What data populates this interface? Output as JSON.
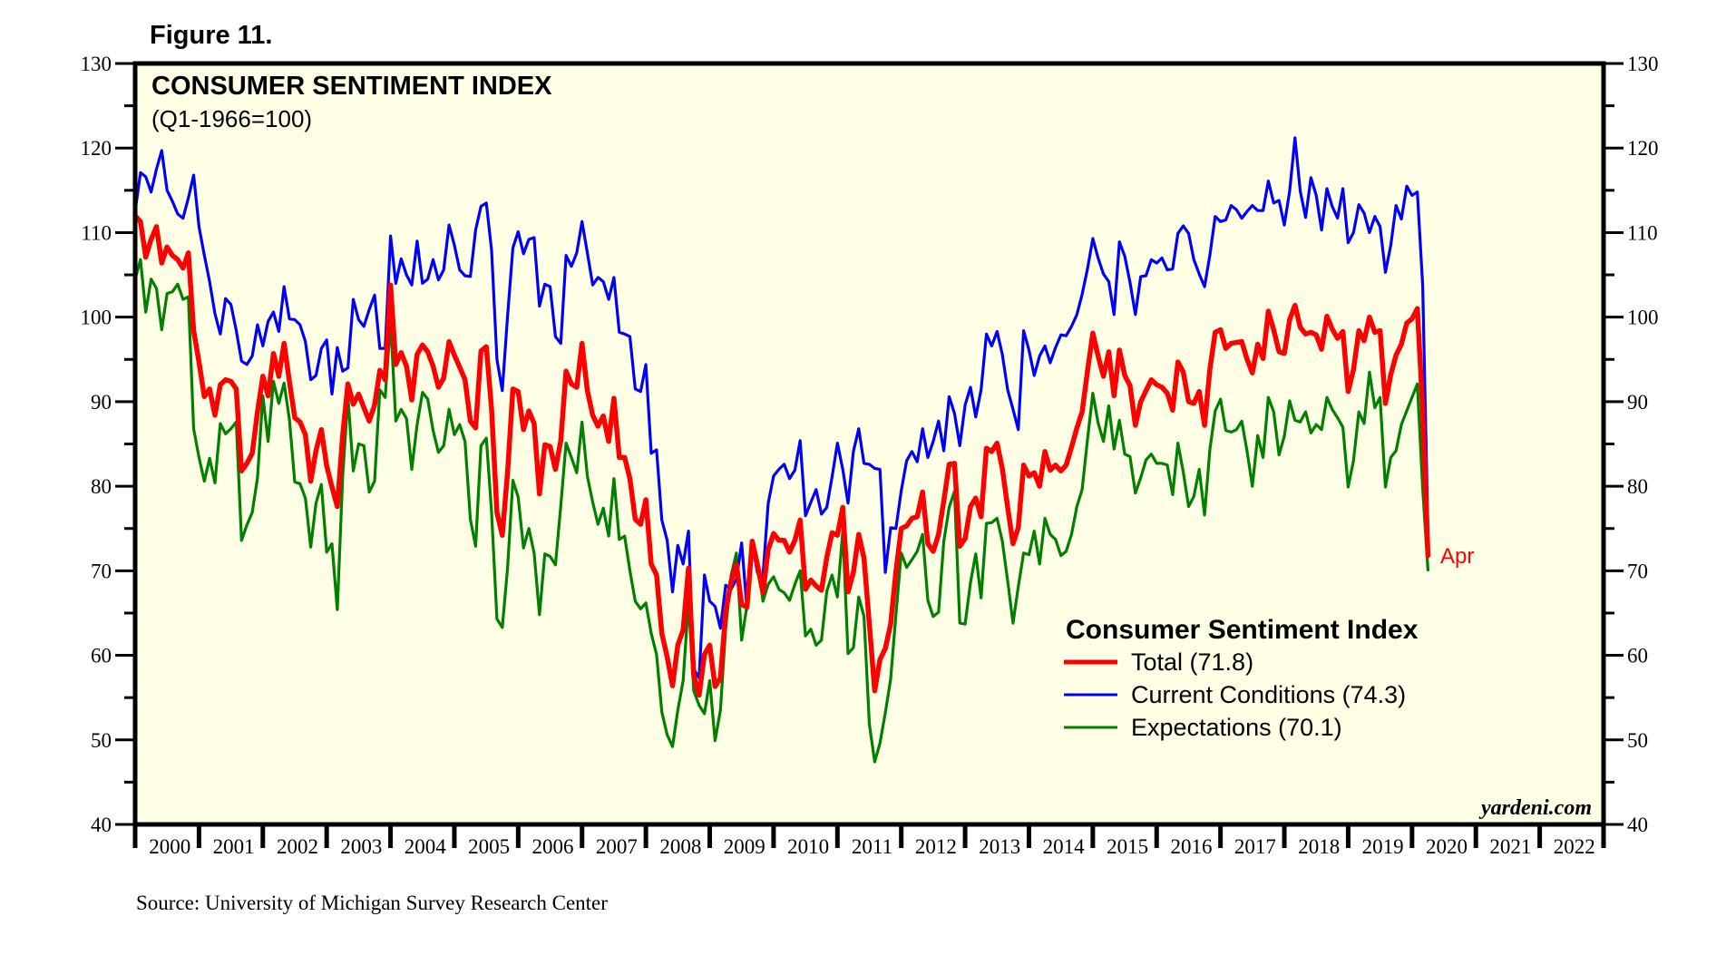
{
  "figure_label": "Figure 11.",
  "source": "Source: University of Michigan Survey Research Center",
  "watermark": "yardeni.com",
  "end_label": "Apr",
  "colors": {
    "plot_background": "#FFFFE5",
    "total": "#FF0000",
    "current": "#0000FF",
    "expectations": "#008000"
  },
  "chart_data": {
    "type": "line",
    "title": "CONSUMER SENTIMENT INDEX",
    "subtitle": "(Q1-1966=100)",
    "xlabel": "",
    "ylabel": "",
    "ylim": [
      40,
      130
    ],
    "yticks": [
      40,
      50,
      60,
      70,
      80,
      90,
      100,
      110,
      120,
      130
    ],
    "xlim": [
      2000,
      2023
    ],
    "xtick_labels": [
      "2000",
      "2001",
      "2002",
      "2003",
      "2004",
      "2005",
      "2006",
      "2007",
      "2008",
      "2009",
      "2010",
      "2011",
      "2012",
      "2013",
      "2014",
      "2015",
      "2016",
      "2017",
      "2018",
      "2019",
      "2020",
      "2021",
      "2022"
    ],
    "x_start": "2000-01",
    "frequency": "monthly",
    "grid": false,
    "legend": {
      "title": "Consumer Sentiment Index",
      "placement": "bottom-right",
      "entries": [
        {
          "key": "total",
          "label": "Total (71.8)"
        },
        {
          "key": "current",
          "label": "Current Conditions (74.3)"
        },
        {
          "key": "expectations",
          "label": "Expectations (70.1)"
        }
      ]
    },
    "annotations": [
      {
        "text": "Apr",
        "series": "total",
        "x": "2020-04"
      }
    ],
    "series": [
      {
        "key": "total",
        "name": "Total",
        "values": [
          112.0,
          111.3,
          107.1,
          109.2,
          110.7,
          106.4,
          108.3,
          107.3,
          106.8,
          105.8,
          107.6,
          98.4,
          94.7,
          90.6,
          91.5,
          88.4,
          92.0,
          92.6,
          92.4,
          91.5,
          81.8,
          82.7,
          83.9,
          88.8,
          93.0,
          90.7,
          95.7,
          93.0,
          96.9,
          92.4,
          88.1,
          87.6,
          86.1,
          80.6,
          84.2,
          86.7,
          82.4,
          79.9,
          77.6,
          86.0,
          92.1,
          89.7,
          90.9,
          89.3,
          87.7,
          89.6,
          93.7,
          92.6,
          103.8,
          94.4,
          95.8,
          94.2,
          90.2,
          95.6,
          96.7,
          95.9,
          94.2,
          91.7,
          92.8,
          97.1,
          95.5,
          94.1,
          92.6,
          87.7,
          86.9,
          96.0,
          96.5,
          89.1,
          76.9,
          74.2,
          81.6,
          91.5,
          91.2,
          86.7,
          88.9,
          87.4,
          79.1,
          84.9,
          84.7,
          82.0,
          85.4,
          93.6,
          92.1,
          91.7,
          96.9,
          91.3,
          88.4,
          87.1,
          88.3,
          85.3,
          90.4,
          83.4,
          83.4,
          80.9,
          76.1,
          75.5,
          78.4,
          70.8,
          69.5,
          62.6,
          59.8,
          56.4,
          61.2,
          63.0,
          70.3,
          57.6,
          55.3,
          60.1,
          61.2,
          56.3,
          57.3,
          65.1,
          68.7,
          70.8,
          66.0,
          65.7,
          73.5,
          70.6,
          67.4,
          72.5,
          74.4,
          73.6,
          73.6,
          72.2,
          73.6,
          76.0,
          67.8,
          68.9,
          68.2,
          67.7,
          71.6,
          74.5,
          74.2,
          77.5,
          67.5,
          69.8,
          74.3,
          71.5,
          63.7,
          55.8,
          59.5,
          60.8,
          63.7,
          69.9,
          75.0,
          75.3,
          76.2,
          76.4,
          79.3,
          73.2,
          72.3,
          74.3,
          78.3,
          82.6,
          82.7,
          72.9,
          73.8,
          77.6,
          78.6,
          76.4,
          84.5,
          84.1,
          85.1,
          82.1,
          77.5,
          73.2,
          75.1,
          82.5,
          81.2,
          81.6,
          80.0,
          84.1,
          81.9,
          82.5,
          81.8,
          82.5,
          84.6,
          86.9,
          88.8,
          93.6,
          98.1,
          95.4,
          93.0,
          95.9,
          90.7,
          96.1,
          93.1,
          91.9,
          87.2,
          90.0,
          91.3,
          92.6,
          92.0,
          91.7,
          91.0,
          89.0,
          94.7,
          93.5,
          90.0,
          89.8,
          91.2,
          87.2,
          93.8,
          98.2,
          98.5,
          96.3,
          96.9,
          97.0,
          97.1,
          95.0,
          93.4,
          96.8,
          95.1,
          100.7,
          98.5,
          95.9,
          95.7,
          99.7,
          101.4,
          98.8,
          98.0,
          98.2,
          97.9,
          96.2,
          100.1,
          98.6,
          97.5,
          98.3,
          91.2,
          93.8,
          98.4,
          97.2,
          100.0,
          98.2,
          98.4,
          89.8,
          93.2,
          95.5,
          96.8,
          99.3,
          99.8,
          101.0,
          89.1,
          71.8
        ]
      },
      {
        "key": "current",
        "name": "Current Conditions",
        "values": [
          112.5,
          117.1,
          116.6,
          114.8,
          117.5,
          119.7,
          115.0,
          113.7,
          112.2,
          111.7,
          114.1,
          116.8,
          110.7,
          107.3,
          104.2,
          100.4,
          98.0,
          102.2,
          101.5,
          98.4,
          94.8,
          94.4,
          95.4,
          99.1,
          96.6,
          99.5,
          100.6,
          98.3,
          103.6,
          99.8,
          99.7,
          99.1,
          97.1,
          92.6,
          93.1,
          96.3,
          97.3,
          90.9,
          96.4,
          93.6,
          94.0,
          102.1,
          99.7,
          98.9,
          100.9,
          102.6,
          96.3,
          96.3,
          109.6,
          104.0,
          106.9,
          105.0,
          103.8,
          109.0,
          104.0,
          104.5,
          106.8,
          104.4,
          105.6,
          110.9,
          108.5,
          105.6,
          104.9,
          104.8,
          110.3,
          113.1,
          113.5,
          107.9,
          95.0,
          91.3,
          100.1,
          108.2,
          110.1,
          107.5,
          109.2,
          109.4,
          101.3,
          103.9,
          103.6,
          97.7,
          96.9,
          107.3,
          106.0,
          107.6,
          111.3,
          107.6,
          103.8,
          104.7,
          104.2,
          102.1,
          104.7,
          98.2,
          98.0,
          97.7,
          91.5,
          91.2,
          94.4,
          83.9,
          84.3,
          76.0,
          73.6,
          67.5,
          73.0,
          70.8,
          74.7,
          58.4,
          57.3,
          69.5,
          66.4,
          65.8,
          63.2,
          68.3,
          67.8,
          69.0,
          73.3,
          65.5,
          73.1,
          69.7,
          69.4,
          78.0,
          81.2,
          82.0,
          82.6,
          80.9,
          81.9,
          85.4,
          76.5,
          78.1,
          79.6,
          76.7,
          77.5,
          81.1,
          85.1,
          82.0,
          78.0,
          84.1,
          86.8,
          82.7,
          82.6,
          82.1,
          82.0,
          69.8,
          75.1,
          75.0,
          79.5,
          83.0,
          84.1,
          82.9,
          86.8,
          83.4,
          85.3,
          87.7,
          84.2,
          90.6,
          88.6,
          84.8,
          89.6,
          91.7,
          88.2,
          91.4,
          98.0,
          96.6,
          98.3,
          95.6,
          91.4,
          89.1,
          86.7,
          98.4,
          96.1,
          93.1,
          95.4,
          96.6,
          94.6,
          96.4,
          97.9,
          97.8,
          98.9,
          100.3,
          102.7,
          105.7,
          109.3,
          107.0,
          105.1,
          104.2,
          100.3,
          108.9,
          107.2,
          104.1,
          100.3,
          104.8,
          104.9,
          106.8,
          106.4,
          107.0,
          105.6,
          105.7,
          109.9,
          110.8,
          109.9,
          106.8,
          105.1,
          103.6,
          107.3,
          111.9,
          111.3,
          111.5,
          113.2,
          112.7,
          111.7,
          112.5,
          113.2,
          112.6,
          112.6,
          116.1,
          113.5,
          113.8,
          110.9,
          114.9,
          121.2,
          114.9,
          111.8,
          116.5,
          114.4,
          110.3,
          115.2,
          113.1,
          111.7,
          115.2,
          108.8,
          110.0,
          113.3,
          112.3,
          110.0,
          111.9,
          110.7,
          105.3,
          108.5,
          113.2,
          111.6,
          115.5,
          114.4,
          114.8,
          103.7,
          74.3
        ]
      },
      {
        "key": "expectations",
        "name": "Expectations",
        "values": [
          104.5,
          106.8,
          100.6,
          104.5,
          103.4,
          98.5,
          102.8,
          103.0,
          103.9,
          102.1,
          102.4,
          86.8,
          83.4,
          80.6,
          83.3,
          80.4,
          87.4,
          86.2,
          86.8,
          87.6,
          73.6,
          75.4,
          76.9,
          81.0,
          90.7,
          85.3,
          92.4,
          89.8,
          92.2,
          87.9,
          80.5,
          80.3,
          78.6,
          72.8,
          78.0,
          80.2,
          72.2,
          73.2,
          65.4,
          81.1,
          90.6,
          81.8,
          85.0,
          84.8,
          79.3,
          80.6,
          91.4,
          90.5,
          99.6,
          87.7,
          89.1,
          88.0,
          82.0,
          87.3,
          91.1,
          90.3,
          86.6,
          84.0,
          84.8,
          89.1,
          86.1,
          87.3,
          85.3,
          76.1,
          72.9,
          84.8,
          85.7,
          76.9,
          64.3,
          63.3,
          70.3,
          80.7,
          78.7,
          72.7,
          75.0,
          72.1,
          64.8,
          72.0,
          71.7,
          70.7,
          77.7,
          85.1,
          83.4,
          81.6,
          87.6,
          81.2,
          78.1,
          75.5,
          77.4,
          74.1,
          80.9,
          73.7,
          74.1,
          70.0,
          66.4,
          65.5,
          66.2,
          62.6,
          60.1,
          53.3,
          50.6,
          49.2,
          53.5,
          57.0,
          66.4,
          55.8,
          54.1,
          53.1,
          57.0,
          49.9,
          53.5,
          63.2,
          69.4,
          72.1,
          61.8,
          65.9,
          73.4,
          71.2,
          66.4,
          68.4,
          69.3,
          67.8,
          67.4,
          66.5,
          68.4,
          70.0,
          62.3,
          63.1,
          61.2,
          61.8,
          67.6,
          69.5,
          66.9,
          74.7,
          60.2,
          60.9,
          66.9,
          64.6,
          51.9,
          47.4,
          49.6,
          53.2,
          57.2,
          64.8,
          72.1,
          70.4,
          71.3,
          72.3,
          74.3,
          66.5,
          64.6,
          65.1,
          73.5,
          77.5,
          79.4,
          63.8,
          63.7,
          68.6,
          72.0,
          66.8,
          75.6,
          75.7,
          76.2,
          73.5,
          68.8,
          63.8,
          68.1,
          72.1,
          71.9,
          74.7,
          70.8,
          76.2,
          74.3,
          73.7,
          71.8,
          72.3,
          74.3,
          77.6,
          79.6,
          85.5,
          91.0,
          87.5,
          85.3,
          89.5,
          84.4,
          87.8,
          83.8,
          83.5,
          79.2,
          81.0,
          83.1,
          83.8,
          82.7,
          82.7,
          82.5,
          79.0,
          85.1,
          81.7,
          77.6,
          78.8,
          82.0,
          76.6,
          84.3,
          88.9,
          90.3,
          86.6,
          86.4,
          86.7,
          87.7,
          84.1,
          80.0,
          86.0,
          83.4,
          90.5,
          88.8,
          83.7,
          85.9,
          90.1,
          87.8,
          87.6,
          88.8,
          86.3,
          87.3,
          86.7,
          90.5,
          89.1,
          88.1,
          87.0,
          79.9,
          83.0,
          88.8,
          87.4,
          93.5,
          89.3,
          90.5,
          79.9,
          83.4,
          84.2,
          87.3,
          88.9,
          90.5,
          92.1,
          79.7,
          70.1
        ]
      }
    ]
  }
}
